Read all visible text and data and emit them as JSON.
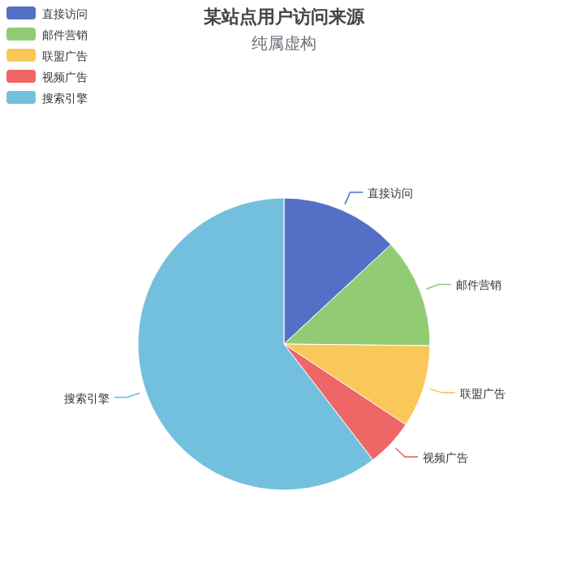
{
  "chart_data": {
    "type": "pie",
    "title": "某站点用户访问来源",
    "subtitle": "纯属虚构",
    "legend": "top left",
    "categories": [
      "直接访问",
      "邮件营销",
      "联盟广告",
      "视频广告",
      "搜索引擎"
    ],
    "values": [
      13.08,
      12.1,
      9.13,
      5.27,
      60.42
    ],
    "colors": [
      "#5470c6",
      "#91cc75",
      "#fac858",
      "#ee6666",
      "#73c0de"
    ]
  }
}
